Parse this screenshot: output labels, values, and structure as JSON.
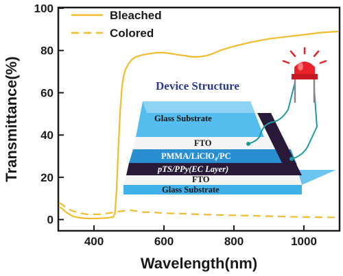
{
  "chart_data": {
    "type": "line",
    "xlabel": "Wavelength(nm)",
    "ylabel": "Transmittance(%)",
    "xlim": [
      300,
      1100
    ],
    "ylim": [
      -5,
      100
    ],
    "xticks": [
      400,
      600,
      800,
      1000
    ],
    "yticks": [
      0,
      20,
      40,
      60,
      80,
      100
    ],
    "x_tick_labels": [
      "400",
      "600",
      "800",
      "1000"
    ],
    "y_tick_labels": [
      "0",
      "20",
      "40",
      "60",
      "80",
      "100"
    ],
    "legend_position": "top-left",
    "grid": false,
    "series": [
      {
        "name": "Bleached",
        "style": "solid",
        "color": "#f2bb2c",
        "x": [
          300,
          310,
          320,
          330,
          340,
          360,
          380,
          400,
          420,
          440,
          455,
          460,
          465,
          470,
          475,
          480,
          485,
          490,
          500,
          510,
          520,
          540,
          560,
          580,
          600,
          620,
          640,
          660,
          680,
          700,
          720,
          740,
          760,
          800,
          850,
          900,
          950,
          1000,
          1050,
          1100
        ],
        "y": [
          6,
          5,
          3.5,
          2.5,
          1.5,
          0.8,
          0.5,
          0.5,
          0.6,
          0.8,
          1.2,
          3,
          15,
          35,
          52,
          63,
          68,
          71,
          74,
          76,
          77,
          78,
          78.5,
          79,
          79,
          78.5,
          78,
          77.5,
          77,
          77,
          77.5,
          78.5,
          80,
          82,
          84,
          85.5,
          86.5,
          87.5,
          88.5,
          89
        ]
      },
      {
        "name": "Colored",
        "style": "dashed",
        "color": "#f2bb2c",
        "x": [
          300,
          310,
          320,
          340,
          360,
          380,
          400,
          420,
          440,
          460,
          480,
          500,
          520,
          540,
          560,
          600,
          650,
          700,
          750,
          800,
          850,
          900,
          950,
          1000,
          1050,
          1100
        ],
        "y": [
          8,
          7,
          5.5,
          4,
          3,
          2.5,
          2.5,
          2.5,
          3,
          3.5,
          4,
          4.5,
          4,
          3.5,
          3.5,
          3,
          2.8,
          2.5,
          2.2,
          2,
          1.8,
          1.6,
          1.4,
          1.2,
          1.1,
          1
        ]
      }
    ]
  },
  "inset": {
    "title": "Device Structure",
    "layers": {
      "glass_top": "Glass  Substrate",
      "fto_top": "FTO",
      "electrolyte": "PMMA/LiClO₄/PC",
      "ec_layer": "pTS/PPy(EC Layer)",
      "fto_bottom": "FTO",
      "glass_bottom": "Glass  Substrate"
    },
    "led_color": "#e8212a"
  },
  "colors": {
    "line": "#f2bb2c",
    "axis": "#1a1a1a",
    "glass": "#3fb0e8",
    "ec_layer": "#2a1a3a",
    "electrolyte": "#2a8fd0",
    "fto": "#f2f2f2"
  }
}
